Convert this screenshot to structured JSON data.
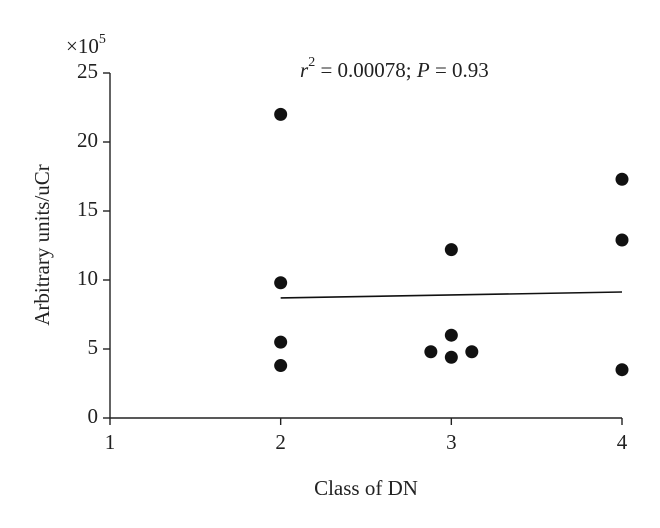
{
  "chart_data": {
    "type": "scatter",
    "annotation": [
      "r",
      "2",
      " = 0.00078; ",
      "P",
      " = 0.93"
    ],
    "y_multiplier": [
      "×10",
      "5"
    ],
    "xlabel": "Class of DN",
    "ylabel": "Arbitrary units/uCr",
    "x": [
      2,
      2,
      2,
      2,
      2.88,
      3,
      3,
      3,
      3.12,
      4,
      4,
      4
    ],
    "values": [
      22,
      9.8,
      5.5,
      3.8,
      4.8,
      12.2,
      6.0,
      4.4,
      4.8,
      17.3,
      12.9,
      3.5
    ],
    "color": "#111111",
    "trend_line": {
      "x": [
        2,
        4
      ],
      "values": [
        8.7,
        9.13
      ],
      "color": "#111111"
    },
    "xlim": [
      1,
      4
    ],
    "xticks": [
      1,
      2,
      3,
      4
    ],
    "ylim": [
      0,
      25
    ],
    "yticks": [
      0,
      5,
      10,
      15,
      20,
      25
    ]
  }
}
